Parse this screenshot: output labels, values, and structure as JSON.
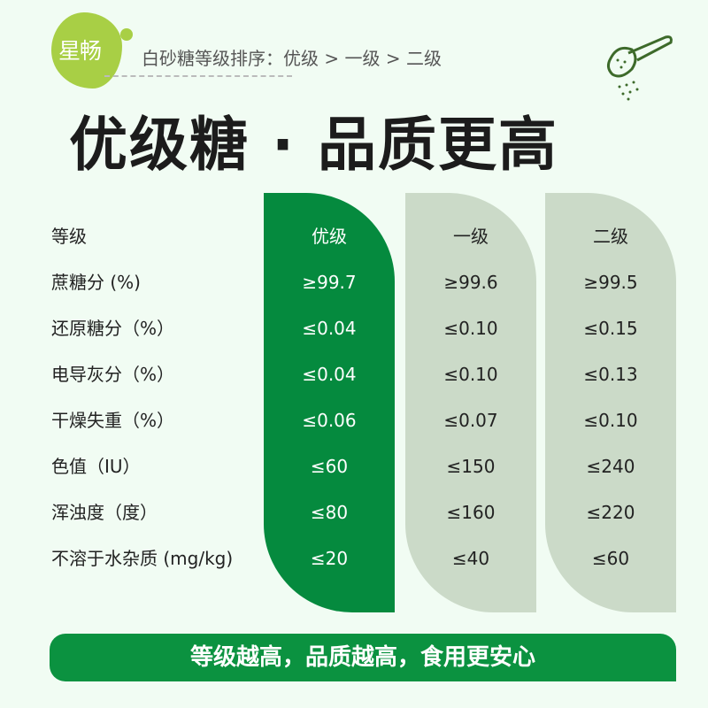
{
  "brand": {
    "logo_text": "星畅",
    "color": "#a8cf45"
  },
  "header": {
    "subtitle": "白砂糖等级排序：优级 > 一级 > 二级",
    "title": "优级糖 · 品质更高",
    "icon": "sugar-spoon-icon"
  },
  "table": {
    "row_labels": [
      "等级",
      "蔗糖分 (%)",
      "还原糖分（%）",
      "电导灰分（%）",
      "干燥失重（%）",
      "色值（IU）",
      "浑浊度（度）",
      "不溶于水杂质 (mg/kg)"
    ],
    "columns": [
      {
        "values": [
          "优级",
          "≥99.7",
          "≤0.04",
          "≤0.04",
          "≤0.06",
          "≤60",
          "≤80",
          "≤20"
        ],
        "color": "#058a3e"
      },
      {
        "values": [
          "一级",
          "≥99.6",
          "≤0.10",
          "≤0.10",
          "≤0.07",
          "≤150",
          "≤160",
          "≤40"
        ],
        "color": "#cbdac8"
      },
      {
        "values": [
          "二级",
          "≥99.5",
          "≤0.15",
          "≤0.13",
          "≤0.10",
          "≤240",
          "≤220",
          "≤60"
        ],
        "color": "#cbdac8"
      }
    ]
  },
  "footer": {
    "slogan": "等级越高，品质越高，食用更安心"
  }
}
